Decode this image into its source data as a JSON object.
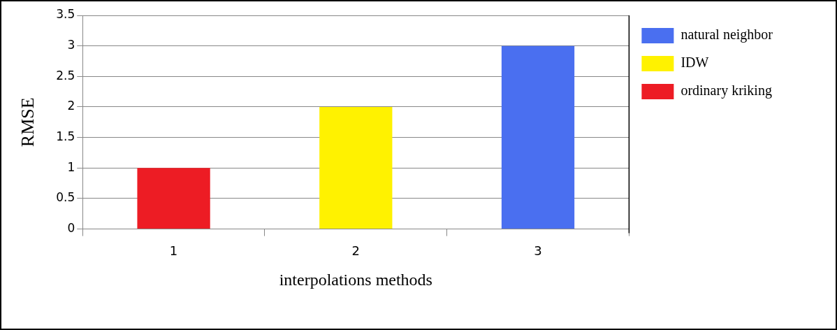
{
  "chart_data": {
    "type": "bar",
    "xlabel": "interpolations methods",
    "ylabel": "RMSE",
    "categories": [
      "1",
      "2",
      "3"
    ],
    "series": [
      {
        "name": "natural neighbor",
        "color": "#4a6ff0",
        "values": [
          null,
          null,
          3
        ]
      },
      {
        "name": "IDW",
        "color": "#fff200",
        "values": [
          null,
          2,
          null
        ]
      },
      {
        "name": "ordinary kriking",
        "color": "#ed1c24",
        "values": [
          1,
          null,
          null
        ]
      }
    ],
    "ylim": [
      0,
      3.5
    ],
    "yticks": [
      0,
      0.5,
      1,
      1.5,
      2,
      2.5,
      3,
      3.5
    ],
    "grid": "y",
    "legend": "top right"
  }
}
